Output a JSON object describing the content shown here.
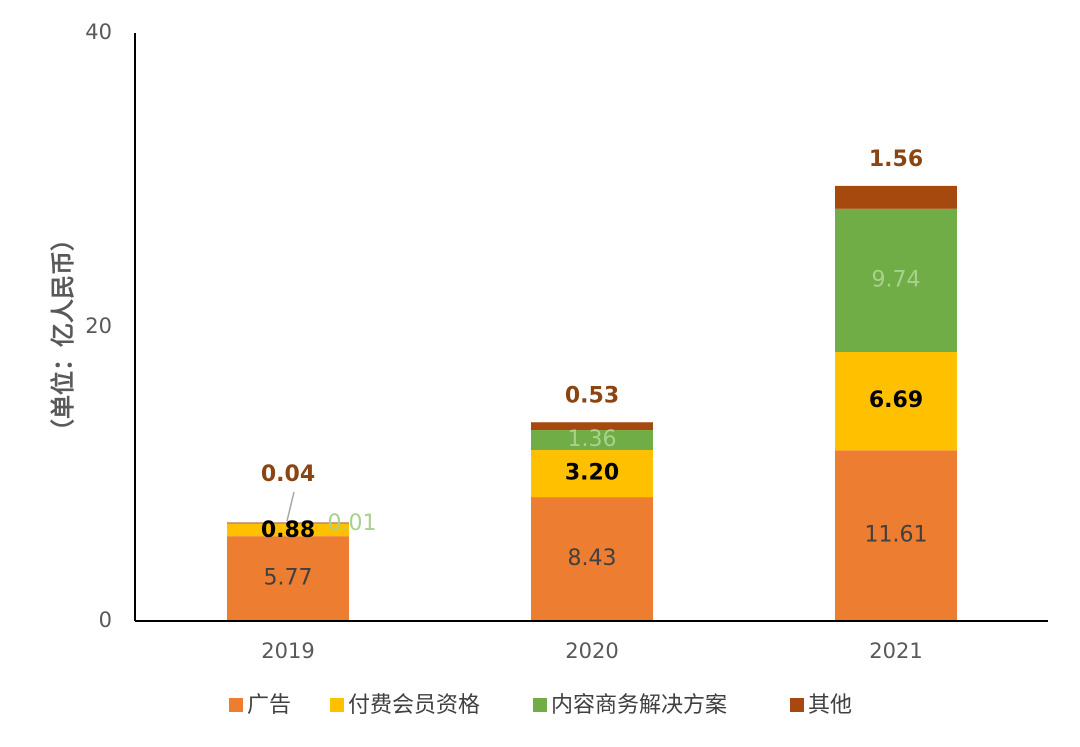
{
  "chart_data": {
    "type": "bar",
    "stacked": true,
    "ylabel": "（单位：亿人民币）",
    "ylim": [
      0,
      40
    ],
    "yticks": [
      0,
      20,
      40
    ],
    "categories": [
      "2019",
      "2020",
      "2021"
    ],
    "series": [
      {
        "name": "广告",
        "color": "#ED7D31",
        "label_color": "#404040",
        "label_bold": false,
        "values": [
          5.77,
          8.43,
          11.61
        ],
        "labels": [
          "5.77",
          "8.43",
          "11.61"
        ]
      },
      {
        "name": "付费会员资格",
        "color": "#FFC000",
        "label_color": "#000000",
        "label_bold": true,
        "values": [
          0.88,
          3.2,
          6.69
        ],
        "labels": [
          "0.88",
          "3.20",
          "6.69"
        ]
      },
      {
        "name": "内容商务解决方案",
        "color": "#70AD47",
        "label_color": "#A9D18E",
        "label_bold": false,
        "values": [
          0.01,
          1.36,
          9.74
        ],
        "labels": [
          "0.01",
          "1.36",
          "9.74"
        ]
      },
      {
        "name": "其他",
        "color": "#A5490F",
        "label_color": "#8B4513",
        "label_bold": true,
        "values": [
          0.04,
          0.53,
          1.56
        ],
        "labels": [
          "0.04",
          "0.53",
          "1.56"
        ]
      }
    ],
    "legend_position": "bottom",
    "grid": false
  }
}
